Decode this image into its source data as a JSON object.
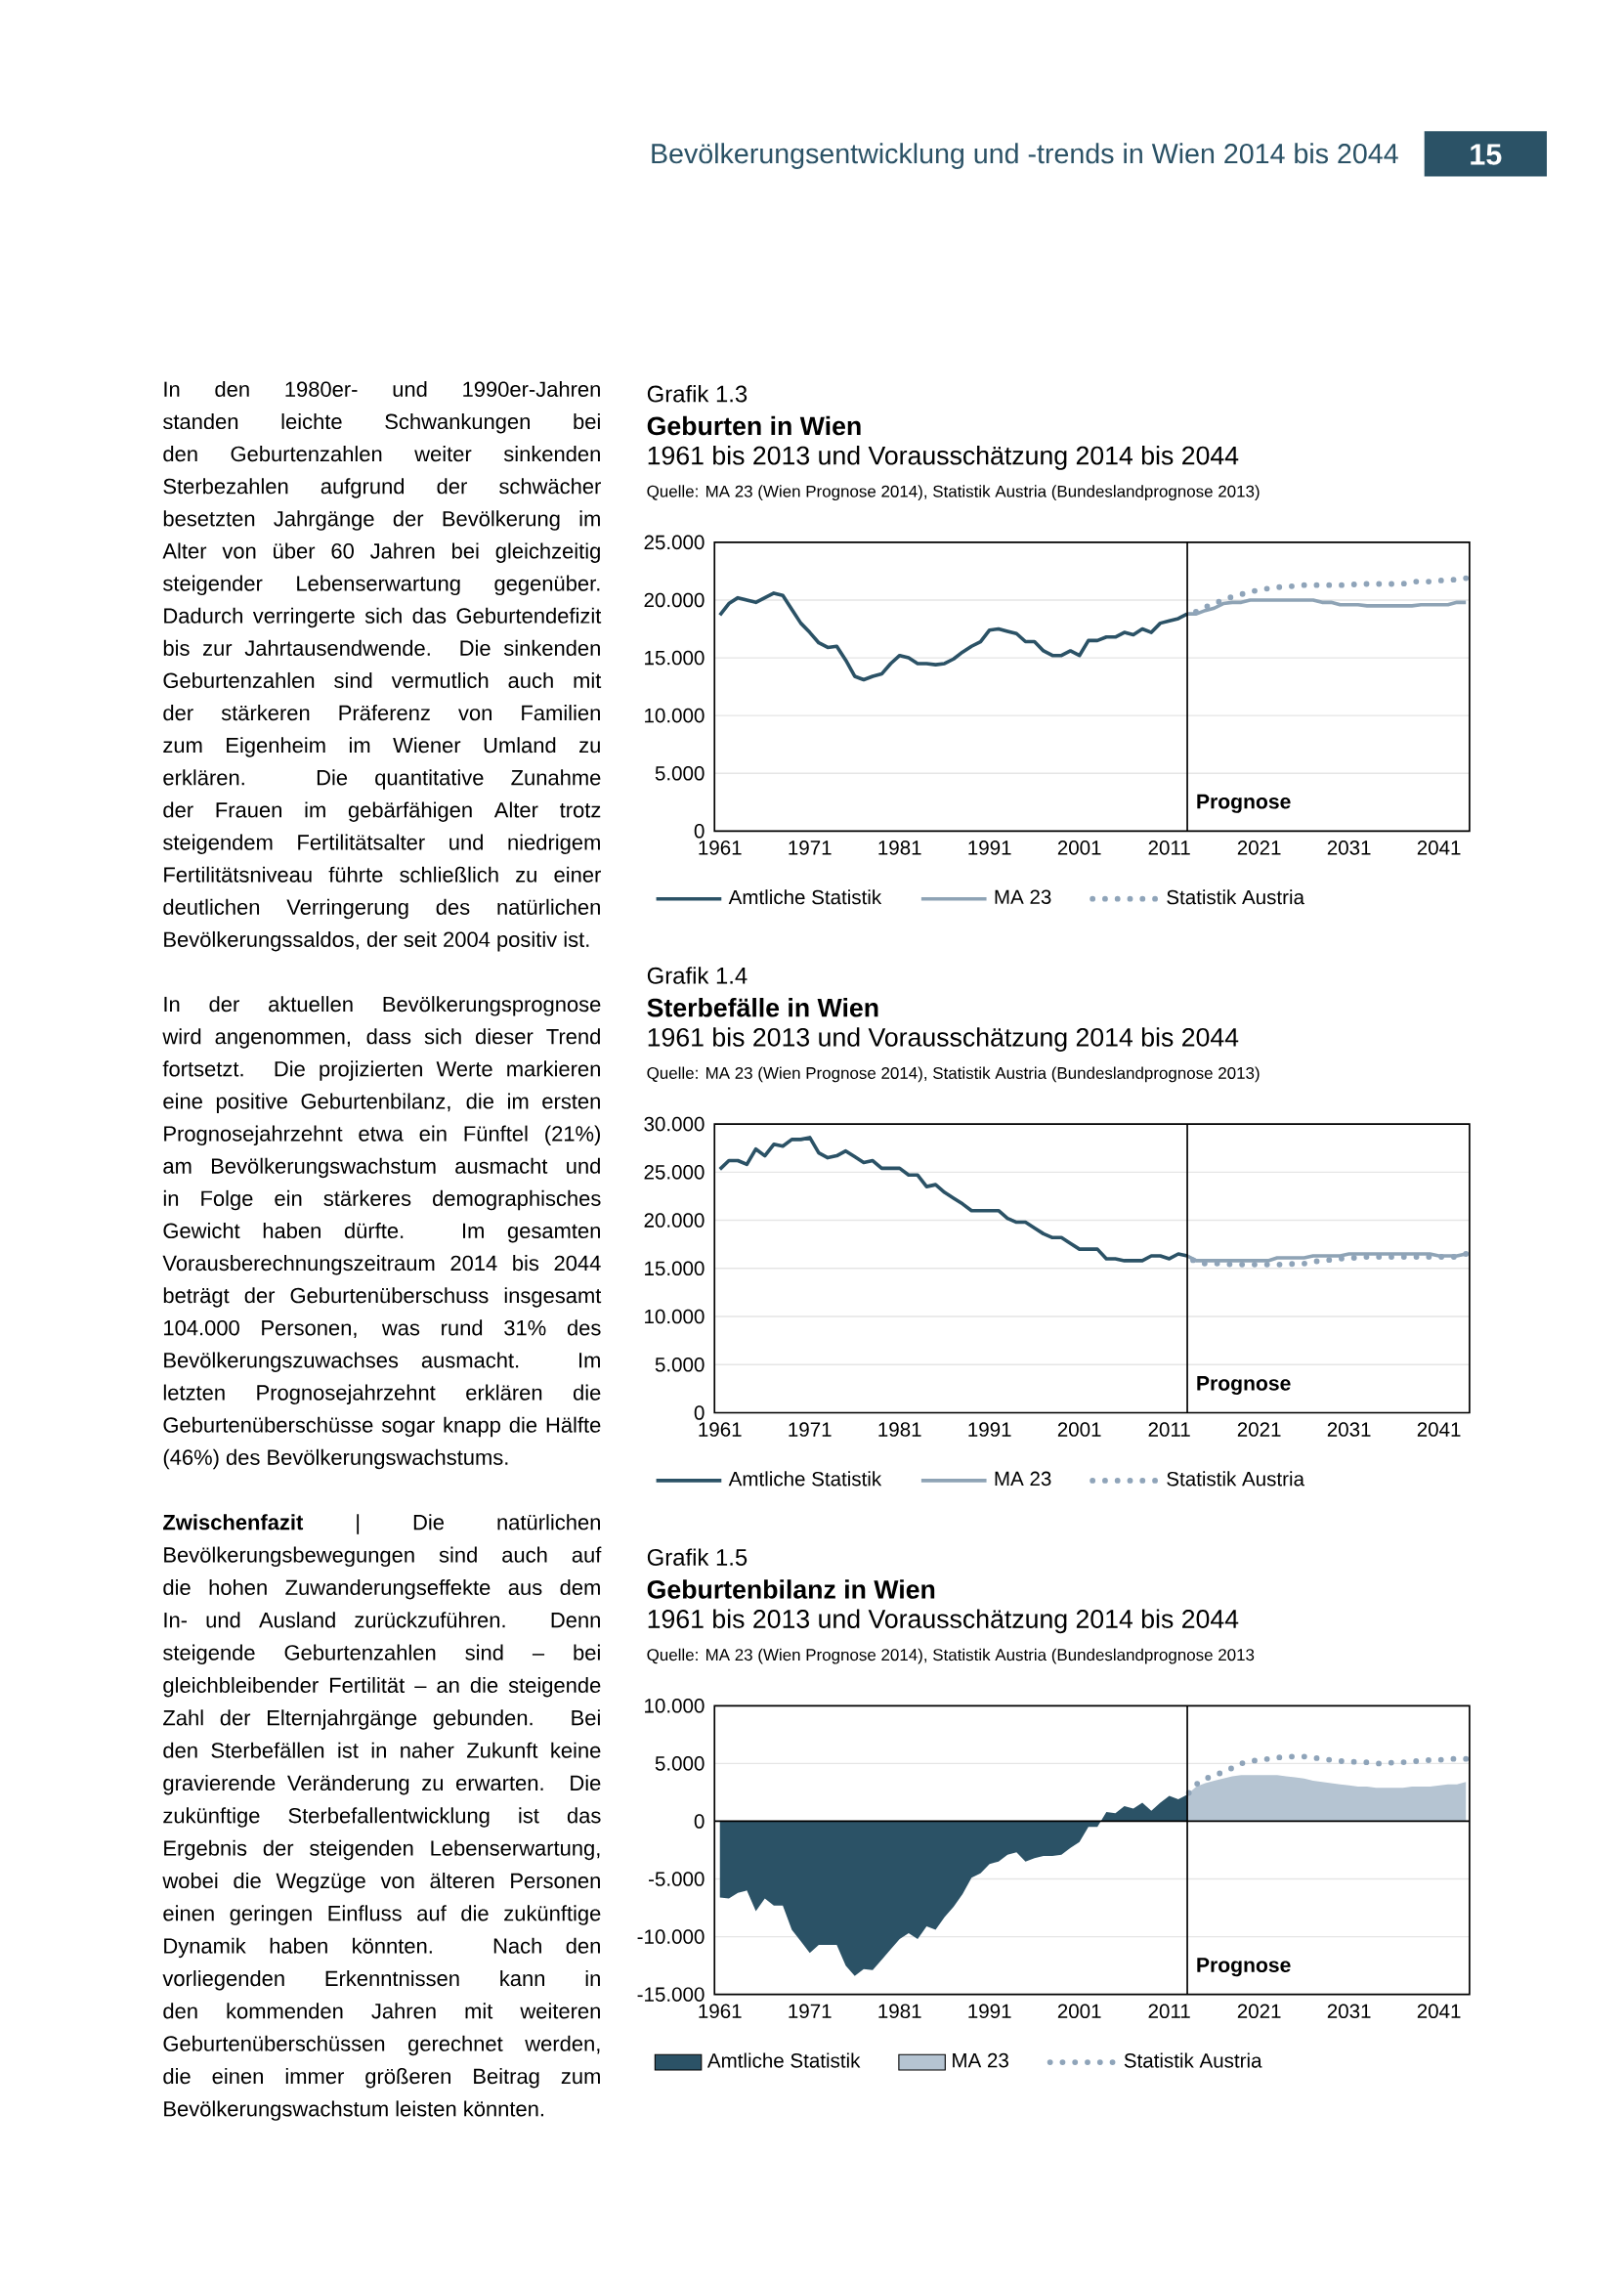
{
  "chart_data": [
    {
      "type": "other",
      "title": "Bevölkerungsentwicklung und -trends in Wien 2014 bis 2044",
      "annotations": [
        "15",
        "In den 1980er- und 1990er-Jahren standen leichte Schwankungen bei den Geburtenzahlen weiter sinkenden Sterbezahlen aufgrund der schwächer besetzten Jahrgänge der Bevölkerung im Alter von über 60 Jahren bei gleichzeitig steigender Lebenserwartung gegenüber. Dadurch verringerte sich das Geburtendefizit bis zur Jahrtausendwende. Die sinkenden Geburtenzahlen sind vermutlich auch mit der stärkeren Präferenz von Familien zum Eigenheim im Wiener Umland zu erklären. Die quantitative Zunahme der Frauen im gebärfähigen Alter trotz steigendem Fertilitätsalter und niedrigem Fertilitätsniveau führte schließlich zu einer deutlichen Verringerung des natürlichen Bevölkerungssaldos, der seit 2004 positiv ist.",
        "In der aktuellen Bevölkerungsprognose wird angenommen, dass sich dieser Trend fortsetzt. Die projizierten Werte markieren eine positive Geburtenbilanz, die im ersten Prognosejahrzehnt etwa ein Fünftel (21%) am Bevölkerungswachstum ausmacht und in Folge ein stärkeres demographisches Gewicht haben dürfte. Im gesamten Vorausberechnungszeitraum 2014 bis 2044 beträgt der Geburtenüberschuss insgesamt 104.000 Personen, was rund 31% des Bevölkerungszuwachses ausmacht. Im letzten Prognosejahrzehnt erklären die Geburtenüberschüsse sogar knapp die Hälfte (46%) des Bevölkerungswachstums.",
        "**Zwischenfazit** | Die natürlichen Bevölkerungsbewegungen sind auch auf die hohen Zuwanderungseffekte aus dem In- und Ausland zurückzuführen. Denn steigende Geburtenzahlen sind – bei gleichbleibender Fertilität – an die steigende Zahl der Elternjahrgänge gebunden. Bei den Sterbefällen ist in naher Zukunft keine gravierende Veränderung zu erwarten. Die zukünftige Sterbefallentwicklung ist das Ergebnis der steigenden Lebenserwartung, wobei die Wegzüge von älteren Personen einen geringen Einfluss auf die zukünftige Dynamik haben könnten. Nach den vorliegenden Erkenntnissen kann in den kommenden Jahren mit weiteren Geburtenüberschüssen gerechnet werden, die einen immer größeren Beitrag zum Bevölkerungswachstum leisten könnten."
      ]
    },
    {
      "type": "line",
      "title": "Geburten in Wien",
      "subtitle": "1961 bis 2013 und Vorausschätzung 2014 bis 2044",
      "annotations": [
        "Grafik 1.3",
        "Quelle: MA 23 (Wien Prognose 2014), Statistik Austria (Bundeslandprognose 2013)"
      ],
      "xlim": [
        1960.4,
        2044.4
      ],
      "xticks": [
        1961,
        1971,
        1981,
        1991,
        2001,
        2011,
        2021,
        2031,
        2041
      ],
      "ylim": [
        0,
        25
      ],
      "yticks": [
        0,
        {
          "value": 5,
          "label": "5.000"
        },
        {
          "value": 10,
          "label": "10.000"
        },
        {
          "value": 15,
          "label": "15.000"
        },
        {
          "value": 20,
          "label": "20.000"
        },
        {
          "value": 25,
          "label": "25.000"
        }
      ],
      "grid": "y",
      "legend": "bottom",
      "ref_lines": [
        {
          "axis": "x",
          "value": 2013,
          "label": "Prognose",
          "color": "#000000"
        }
      ],
      "series": [
        {
          "name": "Amtliche Statistik",
          "color": "#2b5266",
          "x": [
            1961,
            1962,
            1963,
            1964,
            1965,
            1966,
            1967,
            1968,
            1969,
            1970,
            1971,
            1972,
            1973,
            1974,
            1975,
            1976,
            1977,
            1978,
            1979,
            1980,
            1981,
            1982,
            1983,
            1984,
            1985,
            1986,
            1987,
            1988,
            1989,
            1990,
            1991,
            1992,
            1993,
            1994,
            1995,
            1996,
            1997,
            1998,
            1999,
            2000,
            2001,
            2002,
            2003,
            2004,
            2005,
            2006,
            2007,
            2008,
            2009,
            2010,
            2011,
            2012,
            2013
          ],
          "values": [
            18.7,
            19.7,
            20.2,
            20.0,
            19.8,
            20.2,
            20.6,
            20.4,
            19.2,
            18.0,
            17.2,
            16.3,
            15.9,
            16.0,
            14.8,
            13.4,
            13.1,
            13.4,
            13.6,
            14.5,
            15.2,
            15.0,
            14.5,
            14.5,
            14.4,
            14.5,
            14.9,
            15.5,
            16.0,
            16.4,
            17.4,
            17.5,
            17.3,
            17.1,
            16.4,
            16.4,
            15.6,
            15.2,
            15.2,
            15.6,
            15.2,
            16.5,
            16.5,
            16.8,
            16.8,
            17.2,
            17.0,
            17.5,
            17.2,
            18.0,
            18.2,
            18.4,
            18.8
          ]
        },
        {
          "name": "MA 23",
          "color": "#8ea3b5",
          "x": [
            2013,
            2014,
            2015,
            2016,
            2017,
            2018,
            2019,
            2020,
            2021,
            2022,
            2023,
            2024,
            2025,
            2026,
            2027,
            2028,
            2029,
            2030,
            2031,
            2032,
            2033,
            2034,
            2035,
            2036,
            2037,
            2038,
            2039,
            2040,
            2041,
            2042,
            2043,
            2044
          ],
          "values": [
            18.8,
            18.8,
            19.1,
            19.3,
            19.7,
            19.8,
            19.8,
            20.0,
            20.0,
            20.0,
            20.0,
            20.0,
            20.0,
            20.0,
            20.0,
            19.8,
            19.8,
            19.6,
            19.6,
            19.6,
            19.5,
            19.5,
            19.5,
            19.5,
            19.5,
            19.5,
            19.6,
            19.6,
            19.6,
            19.6,
            19.8,
            19.8
          ]
        },
        {
          "name": "Statistik Austria",
          "color": "#8fa4b9",
          "line_style": "dotted",
          "x": [
            2013,
            2014,
            2015,
            2016,
            2017,
            2018,
            2019,
            2020,
            2021,
            2022,
            2023,
            2024,
            2025,
            2026,
            2027,
            2028,
            2029,
            2030,
            2031,
            2032,
            2033,
            2034,
            2035,
            2036,
            2037,
            2038,
            2039,
            2040,
            2041,
            2042,
            2043,
            2044
          ],
          "values": [
            18.8,
            19.0,
            19.4,
            19.7,
            20.0,
            20.3,
            20.5,
            20.7,
            20.9,
            21.0,
            21.1,
            21.2,
            21.2,
            21.3,
            21.3,
            21.3,
            21.3,
            21.3,
            21.3,
            21.4,
            21.4,
            21.4,
            21.4,
            21.4,
            21.4,
            21.6,
            21.6,
            21.6,
            21.7,
            21.7,
            21.8,
            21.9
          ]
        }
      ]
    },
    {
      "type": "line",
      "title": "Sterbefälle in Wien",
      "subtitle": "1961 bis 2013 und Vorausschätzung 2014 bis 2044",
      "annotations": [
        "Grafik 1.4",
        "Quelle: MA 23 (Wien Prognose 2014), Statistik Austria (Bundeslandprognose 2013)"
      ],
      "xlim": [
        1960.4,
        2044.4
      ],
      "xticks": [
        1961,
        1971,
        1981,
        1991,
        2001,
        2011,
        2021,
        2031,
        2041
      ],
      "ylim": [
        0,
        30
      ],
      "yticks": [
        0,
        {
          "value": 5,
          "label": "5.000"
        },
        {
          "value": 10,
          "label": "10.000"
        },
        {
          "value": 15,
          "label": "15.000"
        },
        {
          "value": 20,
          "label": "20.000"
        },
        {
          "value": 25,
          "label": "25.000"
        },
        {
          "value": 30,
          "label": "30.000"
        }
      ],
      "grid": "y",
      "legend": "bottom",
      "ref_lines": [
        {
          "axis": "x",
          "value": 2013,
          "label": "Prognose",
          "color": "#000000"
        }
      ],
      "series": [
        {
          "name": "Amtliche Statistik",
          "color": "#2b5266",
          "x": [
            1961,
            1962,
            1963,
            1964,
            1965,
            1966,
            1967,
            1968,
            1969,
            1970,
            1971,
            1972,
            1973,
            1974,
            1975,
            1976,
            1977,
            1978,
            1979,
            1980,
            1981,
            1982,
            1983,
            1984,
            1985,
            1986,
            1987,
            1988,
            1989,
            1990,
            1991,
            1992,
            1993,
            1994,
            1995,
            1996,
            1997,
            1998,
            1999,
            2000,
            2001,
            2002,
            2003,
            2004,
            2005,
            2006,
            2007,
            2008,
            2009,
            2010,
            2011,
            2012,
            2013
          ],
          "values": [
            25.3,
            26.2,
            26.2,
            25.8,
            27.4,
            26.7,
            27.9,
            27.7,
            28.4,
            28.4,
            28.6,
            27.0,
            26.5,
            26.7,
            27.2,
            26.6,
            26.0,
            26.2,
            25.4,
            25.4,
            25.4,
            24.7,
            24.7,
            23.5,
            23.7,
            22.9,
            22.3,
            21.7,
            21.0,
            21.0,
            21.0,
            21.0,
            20.2,
            19.8,
            19.8,
            19.2,
            18.6,
            18.2,
            18.2,
            17.6,
            17.0,
            17.0,
            17.0,
            16.0,
            16.0,
            15.8,
            15.8,
            15.8,
            16.3,
            16.3,
            16.0,
            16.5,
            16.3
          ]
        },
        {
          "name": "MA 23",
          "color": "#8ea3b5",
          "x": [
            2013,
            2014,
            2015,
            2016,
            2017,
            2018,
            2019,
            2020,
            2021,
            2022,
            2023,
            2024,
            2025,
            2026,
            2027,
            2028,
            2029,
            2030,
            2031,
            2032,
            2033,
            2034,
            2035,
            2036,
            2037,
            2038,
            2039,
            2040,
            2041,
            2042,
            2043,
            2044
          ],
          "values": [
            16.3,
            15.8,
            15.8,
            15.8,
            15.8,
            15.8,
            15.8,
            15.8,
            15.8,
            15.8,
            16.1,
            16.1,
            16.1,
            16.1,
            16.3,
            16.3,
            16.3,
            16.3,
            16.5,
            16.5,
            16.5,
            16.5,
            16.5,
            16.5,
            16.5,
            16.5,
            16.5,
            16.5,
            16.3,
            16.3,
            16.3,
            16.5
          ]
        },
        {
          "name": "Statistik Austria",
          "color": "#8fa4b9",
          "line_style": "dotted",
          "x": [
            2013,
            2014,
            2015,
            2016,
            2017,
            2018,
            2019,
            2020,
            2021,
            2022,
            2023,
            2024,
            2025,
            2026,
            2027,
            2028,
            2029,
            2030,
            2031,
            2032,
            2033,
            2034,
            2035,
            2036,
            2037,
            2038,
            2039,
            2040,
            2041,
            2042,
            2043,
            2044
          ],
          "values": [
            16.3,
            15.6,
            15.5,
            15.5,
            15.5,
            15.4,
            15.4,
            15.4,
            15.4,
            15.4,
            15.4,
            15.4,
            15.5,
            15.5,
            15.7,
            15.8,
            15.9,
            16.0,
            16.1,
            16.1,
            16.2,
            16.2,
            16.2,
            16.2,
            16.2,
            16.2,
            16.2,
            16.2,
            16.2,
            16.2,
            16.2,
            16.5
          ]
        }
      ]
    },
    {
      "type": "area",
      "title": "Geburtenbilanz in Wien",
      "subtitle": "1961 bis 2013 und Vorausschätzung 2014 bis 2044",
      "annotations": [
        "Grafik 1.5",
        "Quelle: MA 23 (Wien Prognose 2014), Statistik Austria (Bundeslandprognose 2013"
      ],
      "xlim": [
        1960.4,
        2044.4
      ],
      "xticks": [
        1961,
        1971,
        1981,
        1991,
        2001,
        2011,
        2021,
        2031,
        2041
      ],
      "ylim": [
        -15,
        10
      ],
      "yticks": [
        {
          "value": -15,
          "label": "-15.000"
        },
        {
          "value": -10,
          "label": "-10.000"
        },
        {
          "value": -5,
          "label": "-5.000"
        },
        0,
        {
          "value": 5,
          "label": "5.000"
        },
        {
          "value": 10,
          "label": "10.000"
        }
      ],
      "grid": "y",
      "legend": "bottom",
      "ref_lines": [
        {
          "axis": "x",
          "value": 2013,
          "label": "Prognose",
          "color": "#000000"
        },
        {
          "axis": "y",
          "value": 0,
          "color": "#000000"
        }
      ],
      "series": [
        {
          "name": "Amtliche Statistik",
          "color": "#2b5266",
          "x": [
            1961,
            1962,
            1963,
            1964,
            1965,
            1966,
            1967,
            1968,
            1969,
            1970,
            1971,
            1972,
            1973,
            1974,
            1975,
            1976,
            1977,
            1978,
            1979,
            1980,
            1981,
            1982,
            1983,
            1984,
            1985,
            1986,
            1987,
            1988,
            1989,
            1990,
            1991,
            1992,
            1993,
            1994,
            1995,
            1996,
            1997,
            1998,
            1999,
            2000,
            2001,
            2002,
            2003,
            2004,
            2005,
            2006,
            2007,
            2008,
            2009,
            2010,
            2011,
            2012,
            2013
          ],
          "values": [
            -6.6,
            -6.7,
            -6.2,
            -6.0,
            -7.8,
            -6.7,
            -7.3,
            -7.3,
            -9.4,
            -10.4,
            -11.4,
            -10.7,
            -10.7,
            -10.7,
            -12.5,
            -13.4,
            -12.8,
            -12.9,
            -12.0,
            -11.1,
            -10.2,
            -9.7,
            -10.2,
            -9.1,
            -9.4,
            -8.3,
            -7.4,
            -6.3,
            -4.9,
            -4.5,
            -3.7,
            -3.5,
            -2.9,
            -2.7,
            -3.5,
            -3.2,
            -3.0,
            -3.0,
            -2.9,
            -2.3,
            -1.8,
            -0.5,
            -0.5,
            0.8,
            0.7,
            1.3,
            1.1,
            1.6,
            0.9,
            1.6,
            2.2,
            1.9,
            2.3
          ]
        },
        {
          "name": "MA 23",
          "color": "#b5c4d2",
          "x": [
            2013,
            2014,
            2015,
            2016,
            2017,
            2018,
            2019,
            2020,
            2021,
            2022,
            2023,
            2024,
            2025,
            2026,
            2027,
            2028,
            2029,
            2030,
            2031,
            2032,
            2033,
            2034,
            2035,
            2036,
            2037,
            2038,
            2039,
            2040,
            2041,
            2042,
            2043,
            2044
          ],
          "values": [
            2.3,
            3.0,
            3.3,
            3.5,
            3.7,
            3.9,
            4.0,
            4.0,
            4.0,
            4.0,
            4.0,
            3.9,
            3.8,
            3.7,
            3.5,
            3.4,
            3.3,
            3.2,
            3.1,
            3.0,
            3.0,
            2.9,
            2.9,
            2.9,
            2.9,
            3.0,
            3.0,
            3.0,
            3.1,
            3.2,
            3.2,
            3.4
          ]
        },
        {
          "name": "Statistik Austria",
          "type": "line",
          "color": "#8fa4b9",
          "line_style": "dotted",
          "x": [
            2013,
            2014,
            2015,
            2016,
            2017,
            2018,
            2019,
            2020,
            2021,
            2022,
            2023,
            2024,
            2025,
            2026,
            2027,
            2028,
            2029,
            2030,
            2031,
            2032,
            2033,
            2034,
            2035,
            2036,
            2037,
            2038,
            2039,
            2040,
            2041,
            2042,
            2043,
            2044
          ],
          "values": [
            2.3,
            3.2,
            3.7,
            3.9,
            4.3,
            4.6,
            5.0,
            5.2,
            5.3,
            5.4,
            5.5,
            5.6,
            5.6,
            5.6,
            5.5,
            5.4,
            5.3,
            5.2,
            5.2,
            5.1,
            5.1,
            5.0,
            5.0,
            5.1,
            5.1,
            5.2,
            5.2,
            5.3,
            5.3,
            5.4,
            5.4,
            5.4
          ]
        }
      ]
    }
  ]
}
